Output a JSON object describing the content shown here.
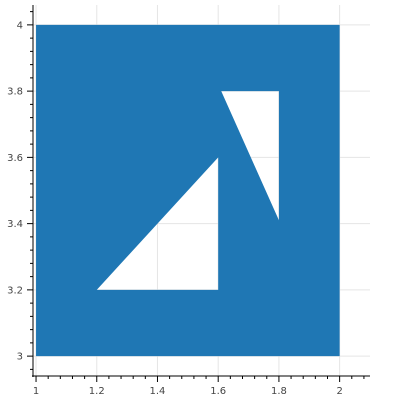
{
  "chart_data": {
    "type": "patch",
    "title": "",
    "xlabel": "",
    "ylabel": "",
    "xlim": [
      0.99,
      2.1
    ],
    "ylim": [
      2.94,
      4.06
    ],
    "grid": true,
    "fill_color": "#1f77b4",
    "hole_color": "#ffffff",
    "x_ticks": [
      1,
      1.2,
      1.4,
      1.6,
      1.8,
      2
    ],
    "x_tick_labels": [
      "1",
      "1.2",
      "1.4",
      "1.6",
      "1.8",
      "2"
    ],
    "y_ticks": [
      3,
      3.2,
      3.4,
      3.6,
      3.8,
      4
    ],
    "y_tick_labels": [
      "3",
      "3.2",
      "3.4",
      "3.6",
      "3.8",
      "4"
    ],
    "outer": [
      [
        1,
        3
      ],
      [
        2,
        3
      ],
      [
        2,
        4
      ],
      [
        1,
        4
      ]
    ],
    "holes": [
      [
        [
          1.2,
          3.2
        ],
        [
          1.6,
          3.2
        ],
        [
          1.6,
          3.6
        ]
      ],
      [
        [
          1.61,
          3.8
        ],
        [
          1.8,
          3.8
        ],
        [
          1.8,
          3.41
        ]
      ]
    ]
  }
}
